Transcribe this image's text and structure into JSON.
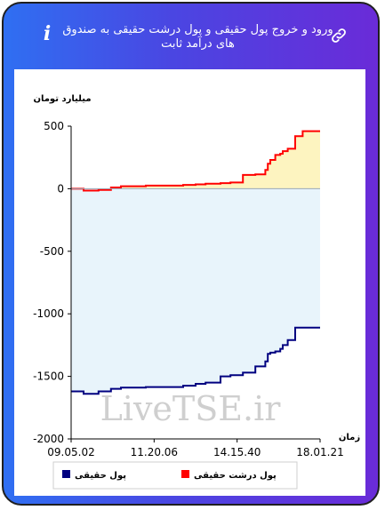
{
  "header": {
    "title": "ورود و خروج پول حقیقی و پول درشت حقیقی به صندوق های درآمد ثابت",
    "info_icon": "info-icon",
    "link_icon": "link-icon"
  },
  "watermark": "LiveTSE.ir",
  "colors": {
    "header_start": "#2f6ff2",
    "header_end": "#6a2bd8",
    "big_money": "#ff0000",
    "real_money": "#000080",
    "big_fill": "#fdf4c0",
    "real_fill": "#e8f4fb"
  },
  "chart_data": {
    "type": "line",
    "ylabel": "میلیارد تومان",
    "xlabel": "زمان",
    "ylim": [
      -2000,
      500
    ],
    "yticks": [
      500,
      0,
      -500,
      -1000,
      -1500,
      -2000
    ],
    "xticks": [
      "09.05.02",
      "11.20.06",
      "14.15.40",
      "18.01.21"
    ],
    "x_range": [
      0,
      1
    ],
    "grid": false,
    "legend_position": "bottom",
    "legend": [
      {
        "name": "پول حقیقی",
        "color": "#000080"
      },
      {
        "name": "پول درشت حقیقی",
        "color": "#ff0000"
      }
    ],
    "series": [
      {
        "name": "پول درشت حقیقی",
        "color": "#ff0000",
        "fill": "#fdf4c0",
        "step": true,
        "x": [
          0,
          0.05,
          0.11,
          0.16,
          0.2,
          0.3,
          0.45,
          0.5,
          0.54,
          0.6,
          0.64,
          0.69,
          0.74,
          0.78,
          0.79,
          0.8,
          0.82,
          0.84,
          0.85,
          0.87,
          0.9,
          0.93,
          0.95,
          1.0
        ],
        "y": [
          0,
          -15,
          -10,
          10,
          20,
          25,
          30,
          35,
          40,
          45,
          50,
          110,
          115,
          150,
          200,
          230,
          270,
          280,
          300,
          320,
          420,
          460,
          460,
          460
        ]
      },
      {
        "name": "پول حقیقی",
        "color": "#000080",
        "fill": "#e8f4fb",
        "step": true,
        "x": [
          0,
          0.05,
          0.11,
          0.16,
          0.2,
          0.3,
          0.45,
          0.5,
          0.54,
          0.6,
          0.64,
          0.69,
          0.74,
          0.78,
          0.79,
          0.8,
          0.82,
          0.84,
          0.85,
          0.87,
          0.9,
          0.93,
          0.95,
          1.0
        ],
        "y": [
          -1620,
          -1640,
          -1620,
          -1600,
          -1590,
          -1585,
          -1575,
          -1560,
          -1550,
          -1500,
          -1490,
          -1470,
          -1420,
          -1380,
          -1320,
          -1310,
          -1300,
          -1280,
          -1250,
          -1210,
          -1110,
          -1110,
          -1110,
          -1110
        ]
      }
    ]
  }
}
